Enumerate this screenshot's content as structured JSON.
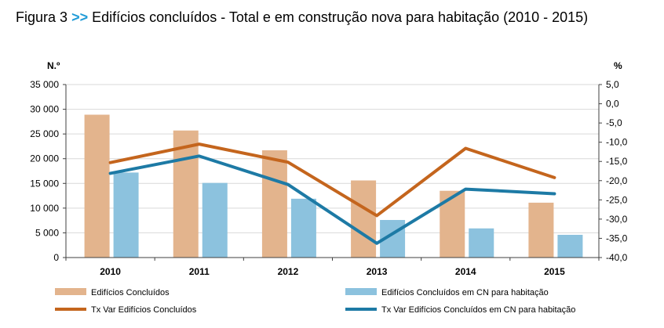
{
  "figure": {
    "label": "Figura 3",
    "arrows": ">>",
    "title": "Edifícios concluídos - Total e em construção nova para habitação (2010 - 2015)"
  },
  "chart_data": {
    "type": "bar",
    "categories": [
      "2010",
      "2011",
      "2012",
      "2013",
      "2014",
      "2015"
    ],
    "y_left": {
      "unit_label": "N.º",
      "ylim": [
        0,
        35000
      ],
      "ticks": [
        "35 000",
        "30 000",
        "25 000",
        "20 000",
        "15 000",
        "10 000",
        "5 000",
        "0"
      ],
      "tick_values": [
        35000,
        30000,
        25000,
        20000,
        15000,
        10000,
        5000,
        0
      ]
    },
    "y_right": {
      "unit_label": "%",
      "ylim": [
        -40,
        5
      ],
      "ticks": [
        "5,0",
        "0,0",
        "-5,0",
        "-10,0",
        "-15,0",
        "-20,0",
        "-25,0",
        "-30,0",
        "-35,0",
        "-40,0"
      ],
      "tick_values": [
        5,
        0,
        -5,
        -10,
        -15,
        -20,
        -25,
        -30,
        -35,
        -40
      ]
    },
    "series": [
      {
        "name": "Edifícios Concluídos",
        "kind": "bar",
        "axis": "left",
        "color": "#e3b48d",
        "values": [
          28900,
          25700,
          21700,
          15600,
          13500,
          11100
        ]
      },
      {
        "name": "Edifícios Concluídos  em CN para habitação",
        "kind": "bar",
        "axis": "left",
        "color": "#8cc2de",
        "values": [
          17200,
          15100,
          11900,
          7600,
          5900,
          4600
        ]
      },
      {
        "name": "Tx Var Edifícios Concluídos",
        "kind": "line",
        "axis": "right",
        "color": "#c4651d",
        "values": [
          -15.3,
          -10.5,
          -15.2,
          -29.1,
          -11.6,
          -19.2
        ]
      },
      {
        "name": "Tx Var Edifícios Concluídos  em CN para habitação",
        "kind": "line",
        "axis": "right",
        "color": "#1d7aa5",
        "values": [
          -18.1,
          -13.6,
          -21.0,
          -36.3,
          -22.2,
          -23.4
        ]
      }
    ],
    "grid": true,
    "legend": "bottom"
  }
}
